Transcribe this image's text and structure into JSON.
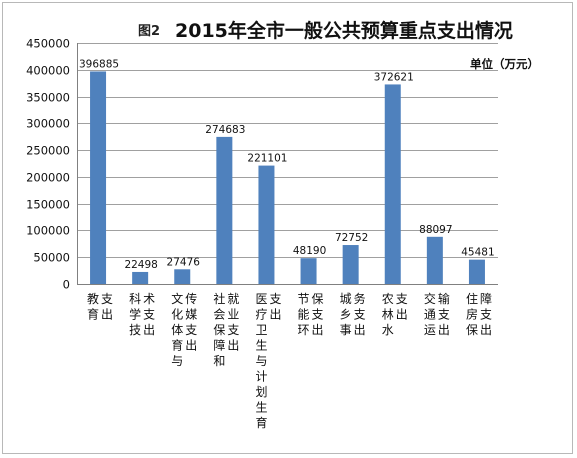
{
  "chart_data": {
    "type": "bar",
    "figure_label": "图2",
    "title": "2015年全市一般公共预算重点支出情况",
    "unit_label": "单位（万元）",
    "categories": [
      "教育支出",
      "科学技术支出",
      "文化体育与传媒支出",
      "社会保障和就业支出",
      "医疗卫生与计划生育支出",
      "节能环保支出",
      "城乡事务支出",
      "农林水支出",
      "交通运输支出",
      "住房保障支出"
    ],
    "values": [
      396885,
      22498,
      27476,
      274683,
      221101,
      48190,
      72752,
      372621,
      88097,
      45481
    ],
    "data_labels": [
      "396885",
      "22498",
      "27476",
      "274683",
      "221101",
      "48190",
      "72752",
      "372621",
      "88097",
      "45481"
    ],
    "y_ticks": [
      "0",
      "50000",
      "100000",
      "150000",
      "200000",
      "250000",
      "300000",
      "350000",
      "400000",
      "450000"
    ],
    "ylim": [
      0,
      450000
    ],
    "grid": true,
    "legend": "none",
    "bar_color": "#4f81bd"
  }
}
